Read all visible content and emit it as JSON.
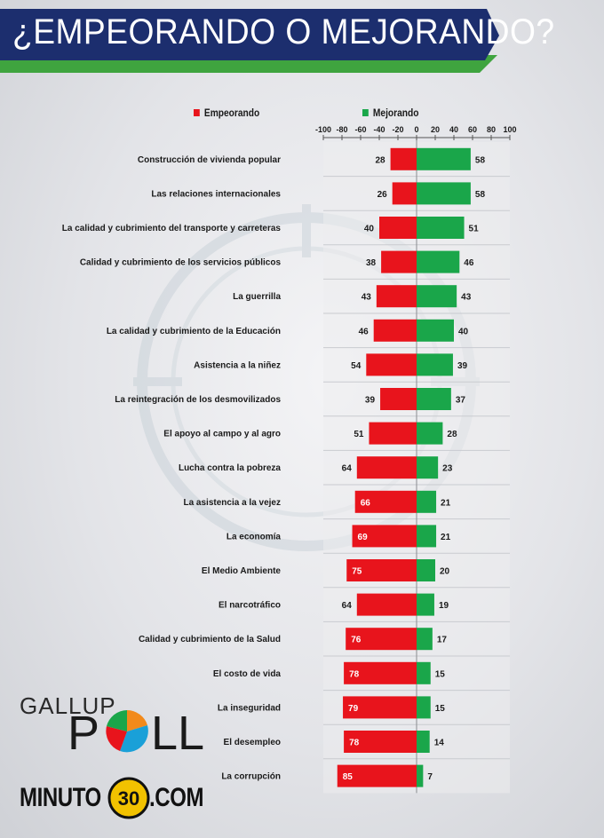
{
  "header": {
    "title": "¿EMPEORANDO O MEJORANDO?"
  },
  "legend": {
    "worse_label": "Empeorando",
    "better_label": "Mejorando"
  },
  "colors": {
    "worse": "#e8141c",
    "better": "#1aa64a",
    "banner_blue": "#1c2e6e",
    "banner_green": "#3fa43f"
  },
  "chart_data": {
    "type": "bar",
    "orientation": "horizontal-diverging",
    "xlim": [
      -100,
      100
    ],
    "ticks": [
      -100,
      -80,
      -60,
      -40,
      -20,
      0,
      20,
      40,
      60,
      80,
      100
    ],
    "categories": [
      "Construcción de vivienda popular",
      "Las relaciones internacionales",
      "La calidad y cubrimiento del transporte y carreteras",
      "Calidad y cubrimiento de los servicios públicos",
      "La guerrilla",
      "La calidad y cubrimiento de la Educación",
      "Asistencia a la niñez",
      "La reintegración de los desmovilizados",
      "El apoyo al campo y al agro",
      "Lucha contra la pobreza",
      "La asistencia a la vejez",
      "La economía",
      "El Medio Ambiente",
      "El narcotráfico",
      "Calidad y cubrimiento de la Salud",
      "El costo de vida",
      "La inseguridad",
      "El desempleo",
      "La corrupción"
    ],
    "series": [
      {
        "name": "Empeorando",
        "values": [
          28,
          26,
          40,
          38,
          43,
          46,
          54,
          39,
          51,
          64,
          66,
          69,
          75,
          64,
          76,
          78,
          79,
          78,
          85
        ]
      },
      {
        "name": "Mejorando",
        "values": [
          58,
          58,
          51,
          46,
          43,
          40,
          39,
          37,
          28,
          23,
          21,
          21,
          20,
          19,
          17,
          15,
          15,
          14,
          7
        ]
      }
    ]
  },
  "logos": {
    "gallup_top": "GALLUP",
    "gallup_bottom": "POLL",
    "minuto_left": "MINUTO",
    "minuto_mid": "30",
    "minuto_right": ".COM"
  }
}
